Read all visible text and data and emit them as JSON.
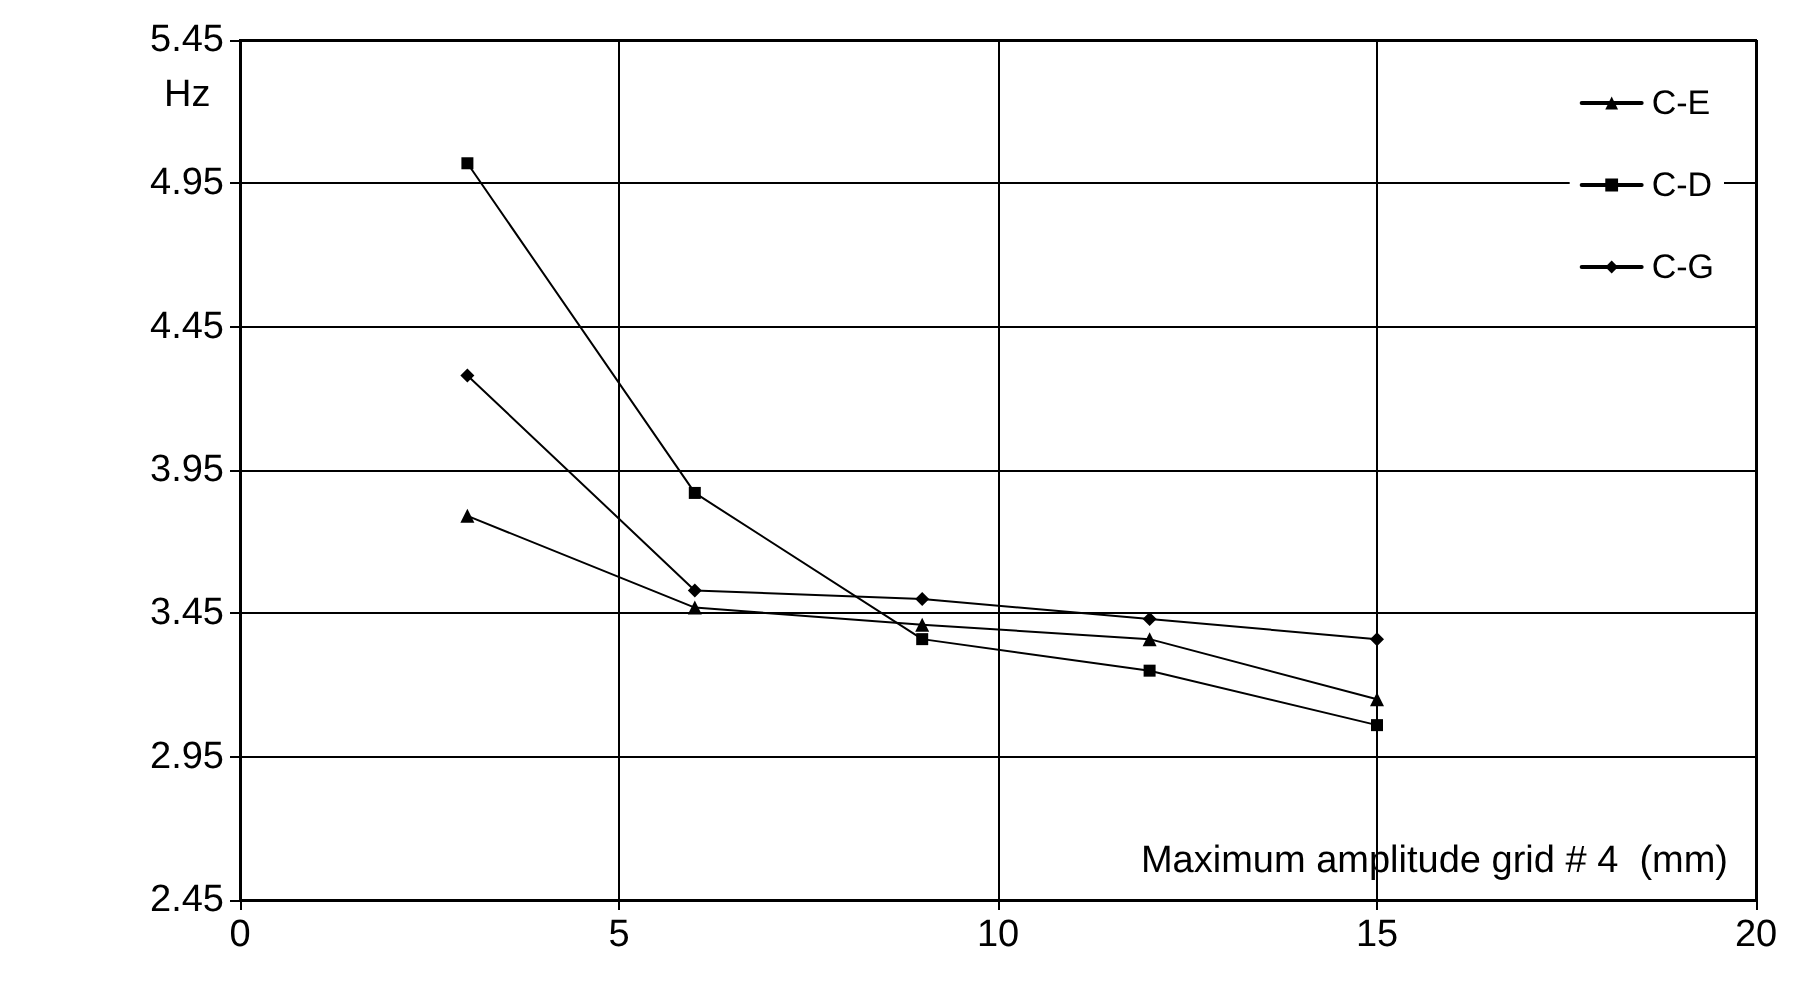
{
  "chart_data": {
    "type": "line",
    "xlabel": "Maximum amplitude grid # 4  (mm)",
    "ylabel": "Hz",
    "x": [
      3,
      6,
      9,
      12,
      15
    ],
    "series": [
      {
        "name": "C-E",
        "color": "#000000",
        "marker": "triangle",
        "values": [
          3.79,
          3.47,
          3.41,
          3.36,
          3.15
        ]
      },
      {
        "name": "C-D",
        "color": "#000000",
        "marker": "square",
        "values": [
          5.02,
          3.87,
          3.36,
          3.25,
          3.06
        ]
      },
      {
        "name": "C-G",
        "color": "#000000",
        "marker": "diamond",
        "values": [
          4.28,
          3.53,
          3.5,
          3.43,
          3.36
        ]
      }
    ],
    "xlim": [
      0,
      20
    ],
    "xticks": [
      0,
      5,
      10,
      15,
      20
    ],
    "ylim": [
      2.45,
      5.45
    ],
    "yticks": [
      2.45,
      2.95,
      3.45,
      3.95,
      4.45,
      4.95,
      5.45
    ],
    "grid": true,
    "legend": "top right",
    "line_style": "solid"
  }
}
